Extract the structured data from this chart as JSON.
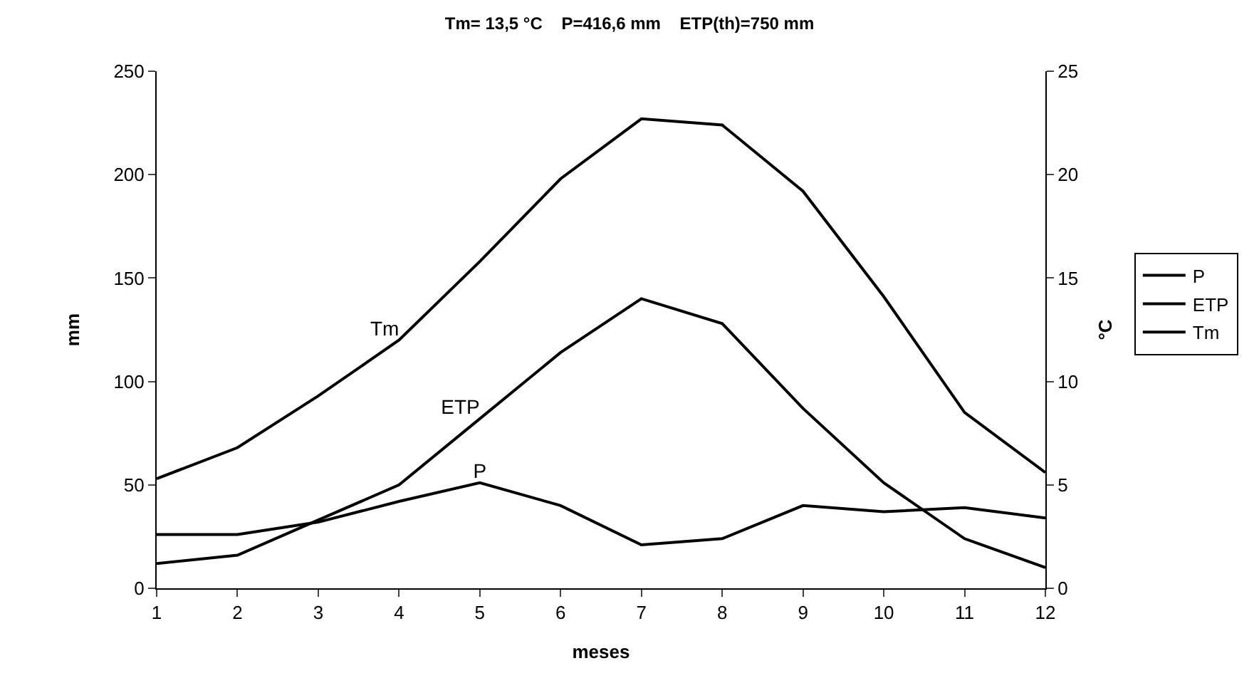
{
  "chart_data": {
    "type": "line",
    "title": "Tm= 13,5 °C    P=416,6 mm    ETP(th)=750 mm",
    "xlabel": "meses",
    "ylabel": "mm",
    "y2label": "°C",
    "x": [
      1,
      2,
      3,
      4,
      5,
      6,
      7,
      8,
      9,
      10,
      11,
      12
    ],
    "series": [
      {
        "name": "P",
        "color": "#000000",
        "values": [
          26,
          26,
          32,
          42,
          51,
          40,
          21,
          24,
          40,
          37,
          39,
          34
        ]
      },
      {
        "name": "ETP",
        "color": "#000000",
        "values": [
          12,
          16,
          33,
          50,
          82,
          114,
          140,
          128,
          87,
          51,
          24,
          10
        ]
      },
      {
        "name": "Tm",
        "color": "#000000",
        "axis": "y2",
        "values": [
          5.3,
          6.8,
          9.3,
          12.0,
          15.8,
          19.8,
          22.7,
          22.4,
          19.2,
          14.1,
          8.5,
          5.6
        ]
      }
    ],
    "xlim": [
      1,
      12
    ],
    "xticks": [
      1,
      2,
      3,
      4,
      5,
      6,
      7,
      8,
      9,
      10,
      11,
      12
    ],
    "ylim": [
      0,
      250
    ],
    "yticks": [
      0,
      50,
      100,
      150,
      200,
      250
    ],
    "y2lim": [
      0,
      25
    ],
    "y2ticks": [
      0,
      5,
      10,
      15,
      20,
      25
    ],
    "grid": false,
    "legend": "right",
    "marker": "none",
    "line_style": "solid"
  }
}
